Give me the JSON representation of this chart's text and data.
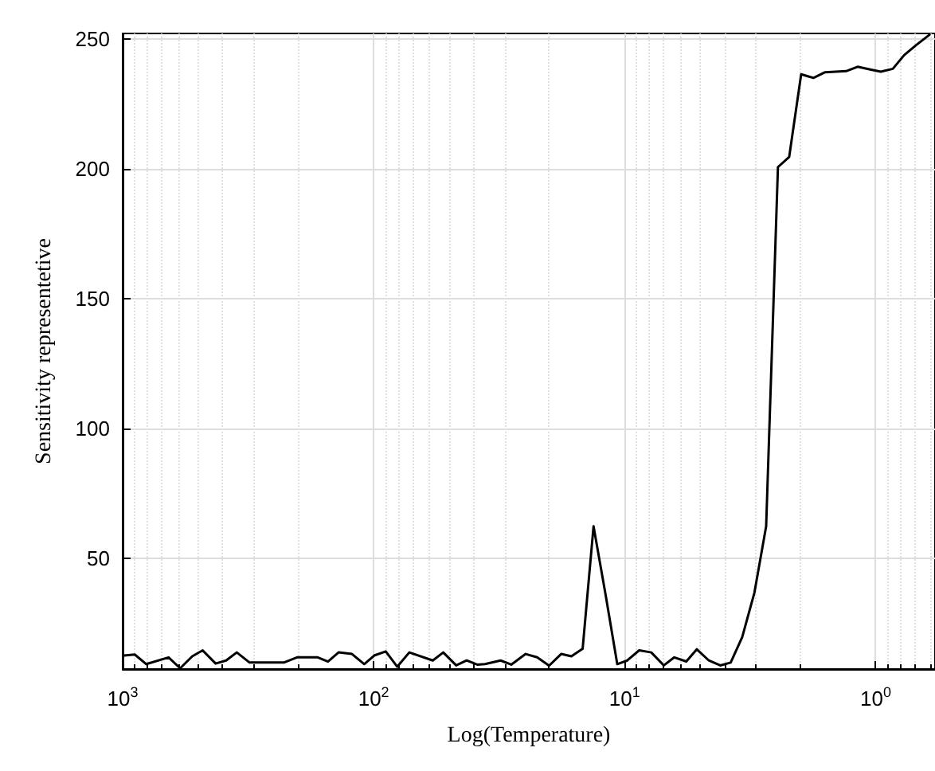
{
  "chart_data": {
    "type": "line",
    "xlabel": "Log(Temperature)",
    "ylabel": "Sensitivity representetive",
    "log": "x",
    "grid": true,
    "marker": "none",
    "line_style": "solid",
    "xlim": [
      1000,
      0.58
    ],
    "xticks": [
      {
        "value": 1000,
        "label": "10$^{3}$"
      },
      {
        "value": 100,
        "label": "10$^{2}$"
      },
      {
        "value": 10,
        "label": "10$^{1}$"
      },
      {
        "value": 1,
        "label": "10$^{0}$"
      }
    ],
    "ylim": [
      7.5,
      252
    ],
    "yticks": [
      50,
      100,
      150,
      200,
      250
    ],
    "x": [
      986,
      895,
      805,
      656,
      590,
      528,
      480,
      426,
      387,
      351,
      312,
      228,
      202,
      167,
      152,
      138,
      122,
      109,
      99.5,
      89.5,
      80.5,
      72.1,
      58.1,
      52.8,
      46.9,
      42.6,
      38.7,
      36.0,
      31.2,
      28.3,
      24.8,
      22.3,
      20.0,
      17.9,
      16.3,
      14.7,
      13.3,
      11.9,
      10.7,
      9.76,
      8.75,
      7.83,
      6.98,
      6.34,
      5.68,
      5.16,
      4.62,
      4.16,
      3.78,
      3.4,
      3.04,
      2.73,
      2.45,
      2.21,
      1.98,
      1.77,
      1.59,
      1.31,
      1.18,
      1.06,
      0.954,
      0.854,
      0.769,
      0.688,
      0.61
    ],
    "series": [
      {
        "color": "#000000",
        "values": [
          12.7,
          13.1,
          9.4,
          12.0,
          7.8,
          12.4,
          14.7,
          9.6,
          10.8,
          13.9,
          10.0,
          10.0,
          12.0,
          12.0,
          10.4,
          13.9,
          13.3,
          9.4,
          12.7,
          14.3,
          8.4,
          13.9,
          10.8,
          13.9,
          8.9,
          10.8,
          9.2,
          9.4,
          10.8,
          9.2,
          13.3,
          12.0,
          8.8,
          13.3,
          12.4,
          15.3,
          62.4,
          35.9,
          9.4,
          10.8,
          14.7,
          13.9,
          8.9,
          12.0,
          10.4,
          15.1,
          10.8,
          8.9,
          10.0,
          19.8,
          36.9,
          62.4,
          200.6,
          204.5,
          236.3,
          234.9,
          237.1,
          237.5,
          239.2,
          238.2,
          237.3,
          238.4,
          243.7,
          247.6,
          251.5
        ]
      }
    ]
  }
}
